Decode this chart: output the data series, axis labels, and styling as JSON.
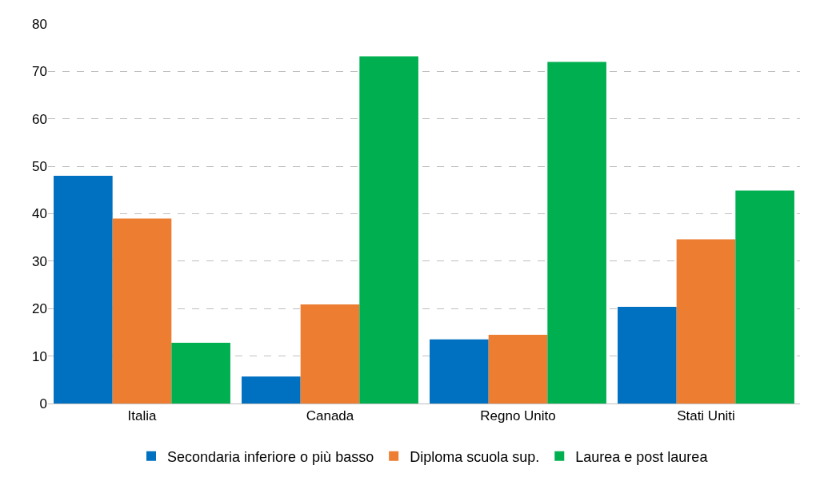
{
  "chart_data": {
    "type": "bar",
    "categories": [
      "Italia",
      "Canada",
      "Regno Unito",
      "Stati Uniti"
    ],
    "series": [
      {
        "name": "Secondaria inferiore o più basso",
        "color": "#0070c0",
        "values": [
          48.0,
          5.7,
          13.5,
          20.4
        ]
      },
      {
        "name": "Diploma scuola sup.",
        "color": "#ed7d31",
        "values": [
          39.0,
          20.9,
          14.5,
          34.6
        ]
      },
      {
        "name": "Laurea e post laurea",
        "color": "#00b050",
        "values": [
          12.8,
          73.2,
          72.0,
          44.9
        ]
      }
    ],
    "ylim": [
      0,
      80
    ],
    "yticks": [
      0,
      10,
      20,
      30,
      40,
      50,
      60,
      70,
      80
    ],
    "grid": "y",
    "legend": "bottom"
  }
}
